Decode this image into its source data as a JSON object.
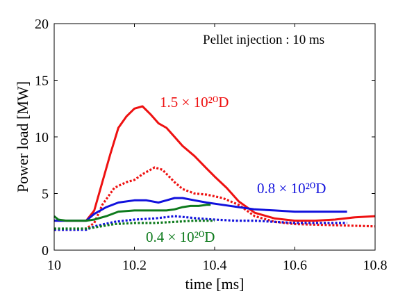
{
  "chart_data": {
    "type": "line",
    "title": "",
    "xlabel": "time [ms]",
    "ylabel": "Power load [MW]",
    "xlim": [
      10,
      10.8
    ],
    "ylim": [
      0,
      20
    ],
    "xticks": [
      10,
      10.2,
      10.4,
      10.6,
      10.8
    ],
    "xtick_labels": [
      "10",
      "10.2",
      "10.4",
      "10.6",
      "10.8"
    ],
    "yticks": [
      0,
      5,
      10,
      15,
      20
    ],
    "ytick_labels": [
      "0",
      "5",
      "10",
      "15",
      "20"
    ],
    "grid": false,
    "annotation": "Pellet injection : 10 ms",
    "series": [
      {
        "id": "red-solid",
        "color": "#ee1111",
        "style": "solid",
        "x": [
          10.0,
          10.02,
          10.05,
          10.08,
          10.1,
          10.12,
          10.14,
          10.16,
          10.18,
          10.2,
          10.22,
          10.24,
          10.26,
          10.28,
          10.3,
          10.32,
          10.35,
          10.38,
          10.4,
          10.43,
          10.46,
          10.5,
          10.55,
          10.6,
          10.65,
          10.7,
          10.75,
          10.8
        ],
        "y": [
          2.6,
          2.6,
          2.6,
          2.6,
          3.5,
          6.0,
          8.5,
          10.8,
          11.8,
          12.5,
          12.7,
          12.0,
          11.2,
          10.8,
          10.0,
          9.2,
          8.3,
          7.2,
          6.5,
          5.5,
          4.3,
          3.3,
          2.8,
          2.6,
          2.6,
          2.7,
          2.9,
          3.0
        ]
      },
      {
        "id": "red-dotted",
        "color": "#ee1111",
        "style": "dotted",
        "x": [
          10.0,
          10.05,
          10.08,
          10.1,
          10.12,
          10.15,
          10.18,
          10.2,
          10.22,
          10.25,
          10.27,
          10.3,
          10.32,
          10.35,
          10.38,
          10.42,
          10.46,
          10.5,
          10.55,
          10.6,
          10.7,
          10.8
        ],
        "y": [
          1.8,
          1.8,
          1.9,
          2.4,
          4.0,
          5.5,
          6.0,
          6.2,
          6.7,
          7.3,
          7.1,
          6.0,
          5.4,
          5.0,
          4.9,
          4.6,
          4.0,
          3.0,
          2.5,
          2.3,
          2.2,
          2.1
        ]
      },
      {
        "id": "blue-solid",
        "color": "#1111dd",
        "style": "solid",
        "x": [
          10.0,
          10.05,
          10.08,
          10.1,
          10.13,
          10.16,
          10.2,
          10.23,
          10.26,
          10.28,
          10.3,
          10.32,
          10.35,
          10.38,
          10.42,
          10.46,
          10.5,
          10.55,
          10.6,
          10.65,
          10.7,
          10.73
        ],
        "y": [
          2.6,
          2.6,
          2.6,
          3.2,
          3.8,
          4.2,
          4.4,
          4.4,
          4.2,
          4.4,
          4.6,
          4.6,
          4.4,
          4.2,
          4.0,
          3.8,
          3.6,
          3.5,
          3.4,
          3.4,
          3.4,
          3.4
        ]
      },
      {
        "id": "blue-dotted",
        "color": "#1111dd",
        "style": "dotted",
        "x": [
          10.0,
          10.05,
          10.08,
          10.1,
          10.15,
          10.2,
          10.25,
          10.3,
          10.33,
          10.36,
          10.4,
          10.45,
          10.5,
          10.55,
          10.6,
          10.65,
          10.7,
          10.73
        ],
        "y": [
          1.8,
          1.8,
          1.8,
          2.1,
          2.5,
          2.7,
          2.8,
          3.0,
          2.9,
          2.8,
          2.7,
          2.6,
          2.6,
          2.5,
          2.4,
          2.4,
          2.4,
          2.4
        ]
      },
      {
        "id": "green-solid",
        "color": "#0d7a1c",
        "style": "solid",
        "x": [
          10.0,
          10.01,
          10.03,
          10.05,
          10.08,
          10.1,
          10.13,
          10.16,
          10.2,
          10.25,
          10.28,
          10.3,
          10.32,
          10.34,
          10.36,
          10.38,
          10.39
        ],
        "y": [
          3.0,
          2.7,
          2.6,
          2.6,
          2.6,
          2.7,
          3.0,
          3.4,
          3.5,
          3.5,
          3.5,
          3.6,
          3.8,
          3.9,
          3.9,
          4.0,
          4.0
        ]
      },
      {
        "id": "green-dotted",
        "color": "#0d7a1c",
        "style": "dotted",
        "x": [
          10.0,
          10.05,
          10.08,
          10.1,
          10.15,
          10.2,
          10.25,
          10.3,
          10.35,
          10.4
        ],
        "y": [
          1.9,
          1.9,
          1.9,
          2.0,
          2.3,
          2.4,
          2.4,
          2.5,
          2.6,
          2.6
        ]
      }
    ],
    "series_labels": [
      {
        "text": "1.5 × 10²⁰D",
        "color": "#ee1111"
      },
      {
        "text": "0.8 × 10²⁰D",
        "color": "#1111dd"
      },
      {
        "text": "0.4 × 10²⁰D",
        "color": "#0d7a1c"
      }
    ]
  }
}
